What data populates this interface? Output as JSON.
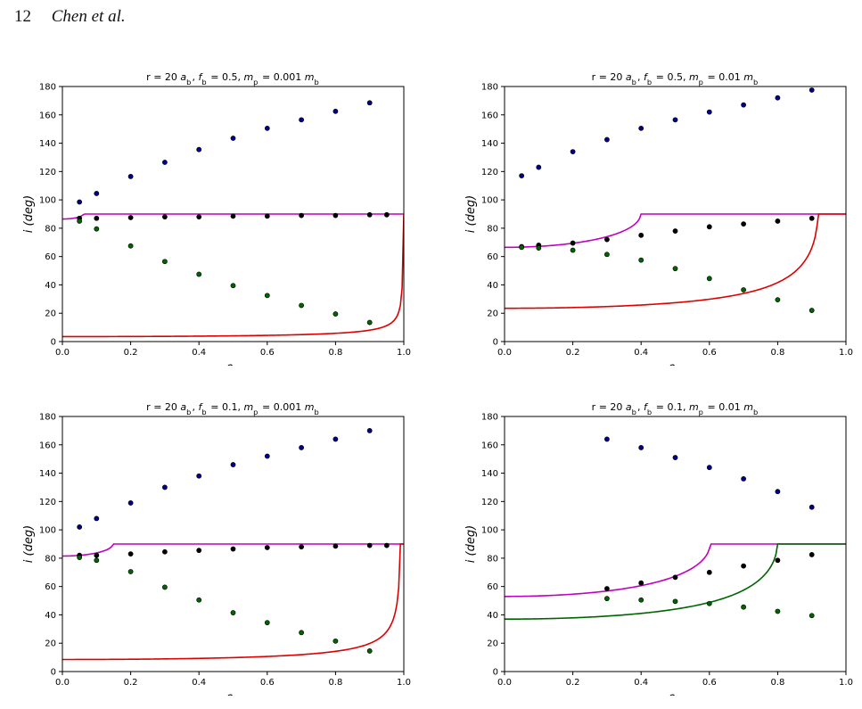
{
  "page": {
    "number": "12",
    "authors": "Chen et al."
  },
  "chart_data": [
    {
      "type": "scatter",
      "title": "r = 20 a_b, f_b = 0.5, m_p = 0.001 m_b",
      "xlabel": "e_b",
      "ylabel": "i (deg)",
      "xlim": [
        0,
        1
      ],
      "ylim": [
        0,
        180
      ],
      "xticks": [
        "0.0",
        "0.2",
        "0.4",
        "0.6",
        "0.8",
        "1.0"
      ],
      "yticks": [
        "0",
        "20",
        "40",
        "60",
        "80",
        "100",
        "120",
        "140",
        "160",
        "180"
      ],
      "grid": false,
      "i0": 86.5,
      "series": [
        {
          "kind": "points",
          "color": "#00008b",
          "x": [
            0.05,
            0.1,
            0.2,
            0.3,
            0.4,
            0.5,
            0.6,
            0.7,
            0.8,
            0.9
          ],
          "y": [
            98.5,
            104.5,
            116.5,
            126.5,
            135.5,
            143.5,
            150.5,
            156.5,
            162.5,
            168.5
          ]
        },
        {
          "kind": "points",
          "color": "#000000",
          "x": [
            0.05,
            0.1,
            0.2,
            0.3,
            0.4,
            0.5,
            0.6,
            0.7,
            0.8,
            0.9,
            0.95
          ],
          "y": [
            87,
            87,
            87.5,
            88,
            88,
            88.5,
            88.5,
            89,
            89,
            89.5,
            89.5
          ]
        },
        {
          "kind": "points",
          "color": "#006400",
          "x": [
            0.05,
            0.1,
            0.2,
            0.3,
            0.4,
            0.5,
            0.6,
            0.7,
            0.8,
            0.9
          ],
          "y": [
            85,
            79.5,
            67.5,
            56.5,
            47.5,
            39.5,
            32.5,
            25.5,
            19.5,
            13.5
          ]
        },
        {
          "kind": "curve",
          "role": "upper",
          "color": "#c000c0"
        },
        {
          "kind": "curve",
          "role": "lower",
          "color": "#dd0000"
        }
      ]
    },
    {
      "type": "scatter",
      "title": "r = 20 a_b, f_b = 0.5, m_p = 0.01 m_b",
      "xlabel": "e_b",
      "ylabel": "i (deg)",
      "xlim": [
        0,
        1
      ],
      "ylim": [
        0,
        180
      ],
      "xticks": [
        "0.0",
        "0.2",
        "0.4",
        "0.6",
        "0.8",
        "1.0"
      ],
      "yticks": [
        "0",
        "20",
        "40",
        "60",
        "80",
        "100",
        "120",
        "140",
        "160",
        "180"
      ],
      "grid": false,
      "i0": 66.5,
      "series": [
        {
          "kind": "points",
          "color": "#00008b",
          "x": [
            0.05,
            0.1,
            0.2,
            0.3,
            0.4,
            0.5,
            0.6,
            0.7,
            0.8,
            0.9
          ],
          "y": [
            117,
            123,
            134,
            142.5,
            150.5,
            156.5,
            162,
            167,
            172,
            177.5
          ]
        },
        {
          "kind": "points",
          "color": "#000000",
          "x": [
            0.05,
            0.1,
            0.2,
            0.3,
            0.4,
            0.5,
            0.6,
            0.7,
            0.8,
            0.9
          ],
          "y": [
            67,
            68,
            69.5,
            72,
            75,
            78,
            81,
            83,
            85,
            87
          ]
        },
        {
          "kind": "points",
          "color": "#006400",
          "x": [
            0.05,
            0.1,
            0.2,
            0.3,
            0.4,
            0.5,
            0.6,
            0.7,
            0.8,
            0.9
          ],
          "y": [
            66.5,
            66,
            64.5,
            61.5,
            57.5,
            51.5,
            44.5,
            36.5,
            29.5,
            22
          ]
        },
        {
          "kind": "curve",
          "role": "upper",
          "color": "#c000c0"
        },
        {
          "kind": "curve",
          "role": "lower",
          "color": "#dd0000"
        }
      ]
    },
    {
      "type": "scatter",
      "title": "r = 20 a_b, f_b = 0.1, m_p = 0.001 m_b",
      "xlabel": "e_b",
      "ylabel": "i (deg)",
      "xlim": [
        0,
        1
      ],
      "ylim": [
        0,
        180
      ],
      "xticks": [
        "0.0",
        "0.2",
        "0.4",
        "0.6",
        "0.8",
        "1.0"
      ],
      "yticks": [
        "0",
        "20",
        "40",
        "60",
        "80",
        "100",
        "120",
        "140",
        "160",
        "180"
      ],
      "grid": false,
      "i0": 81.5,
      "series": [
        {
          "kind": "points",
          "color": "#00008b",
          "x": [
            0.05,
            0.1,
            0.2,
            0.3,
            0.4,
            0.5,
            0.6,
            0.7,
            0.8,
            0.9
          ],
          "y": [
            102,
            108,
            119,
            130,
            138,
            146,
            152,
            158,
            164,
            170
          ]
        },
        {
          "kind": "points",
          "color": "#000000",
          "x": [
            0.05,
            0.1,
            0.2,
            0.3,
            0.4,
            0.5,
            0.6,
            0.7,
            0.8,
            0.9,
            0.95
          ],
          "y": [
            82,
            82,
            83,
            84.5,
            85.5,
            86.5,
            87.5,
            88,
            88.5,
            89,
            89
          ]
        },
        {
          "kind": "points",
          "color": "#006400",
          "x": [
            0.05,
            0.1,
            0.2,
            0.3,
            0.4,
            0.5,
            0.6,
            0.7,
            0.8,
            0.9
          ],
          "y": [
            80.5,
            78.5,
            70.5,
            59.5,
            50.5,
            41.5,
            34.5,
            27.5,
            21.5,
            14.5
          ]
        },
        {
          "kind": "curve",
          "role": "upper",
          "color": "#c000c0"
        },
        {
          "kind": "curve",
          "role": "lower",
          "color": "#dd0000"
        }
      ]
    },
    {
      "type": "scatter",
      "title": "r = 20 a_b, f_b = 0.1, m_p = 0.01 m_b",
      "xlabel": "e_b",
      "ylabel": "i (deg)",
      "xlim": [
        0,
        1
      ],
      "ylim": [
        0,
        180
      ],
      "xticks": [
        "0.0",
        "0.2",
        "0.4",
        "0.6",
        "0.8",
        "1.0"
      ],
      "yticks": [
        "0",
        "20",
        "40",
        "60",
        "80",
        "100",
        "120",
        "140",
        "160",
        "180"
      ],
      "grid": false,
      "i0": 53,
      "series": [
        {
          "kind": "points",
          "color": "#00008b",
          "x": [
            0.3,
            0.4,
            0.5,
            0.6,
            0.7,
            0.8,
            0.9
          ],
          "y": [
            164,
            158,
            151,
            144,
            136,
            127,
            116
          ]
        },
        {
          "kind": "points",
          "color": "#000000",
          "x": [
            0.3,
            0.4,
            0.5,
            0.6,
            0.7,
            0.8,
            0.9
          ],
          "y": [
            58.5,
            62.5,
            66.5,
            70,
            74.5,
            78.5,
            82.5
          ]
        },
        {
          "kind": "points",
          "color": "#006400",
          "x": [
            0.3,
            0.4,
            0.5,
            0.6,
            0.7,
            0.8,
            0.9
          ],
          "y": [
            51.5,
            50.5,
            49.5,
            48,
            45.5,
            42.5,
            39.5
          ]
        },
        {
          "kind": "curve",
          "role": "upper",
          "color": "#c000c0"
        },
        {
          "kind": "curve",
          "role": "lower",
          "color": "#006400"
        }
      ]
    }
  ]
}
